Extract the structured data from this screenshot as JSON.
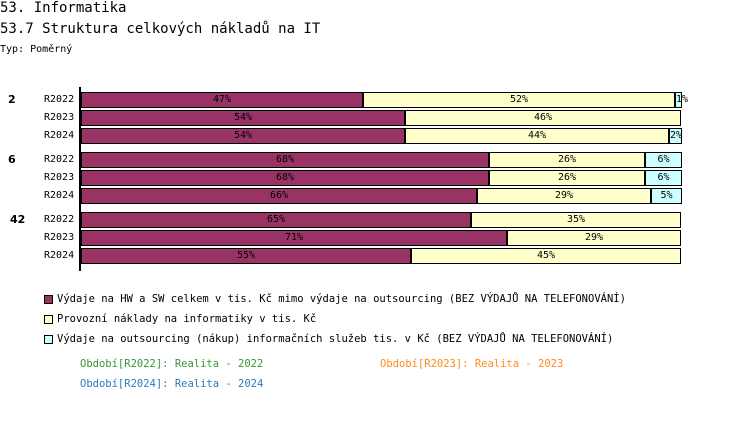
{
  "header": {
    "title": "53. Informatika",
    "subtitle": "53.7 Struktura celkových nákladů na IT",
    "type_label": "Typ: Poměrný"
  },
  "colors": {
    "hw_sw": "#993366",
    "provozni": "#FFFFCC",
    "outsourcing": "#CCFFFF"
  },
  "chart_data": {
    "type": "bar",
    "orientation": "horizontal",
    "stacked": "percent",
    "groups": [
      {
        "label": "2",
        "rows": [
          {
            "label": "R2022",
            "values": [
              47,
              52,
              1
            ]
          },
          {
            "label": "R2023",
            "values": [
              54,
              46,
              0
            ]
          },
          {
            "label": "R2024",
            "values": [
              54,
              44,
              2
            ]
          }
        ]
      },
      {
        "label": "6",
        "rows": [
          {
            "label": "R2022",
            "values": [
              68,
              26,
              6
            ]
          },
          {
            "label": "R2023",
            "values": [
              68,
              26,
              6
            ]
          },
          {
            "label": "R2024",
            "values": [
              66,
              29,
              5
            ]
          }
        ]
      },
      {
        "label": "42",
        "rows": [
          {
            "label": "R2022",
            "values": [
              65,
              35,
              0
            ]
          },
          {
            "label": "R2023",
            "values": [
              71,
              29,
              0
            ]
          },
          {
            "label": "R2024",
            "values": [
              55,
              45,
              0
            ]
          }
        ]
      }
    ],
    "series": [
      {
        "name": "Výdaje na HW a SW celkem v tis. Kč mimo výdaje na outsourcing (BEZ VÝDAJŮ NA TELEFONOVÁNÍ)",
        "color": "#993366"
      },
      {
        "name": "Provozní náklady na informatiky v tis. Kč",
        "color": "#FFFFCC"
      },
      {
        "name": "Výdaje na outsourcing (nákup) informačních služeb tis. v Kč (BEZ VÝDAJŮ NA TELEFONOVÁNÍ)",
        "color": "#CCFFFF"
      }
    ],
    "xlim": [
      0,
      100
    ],
    "legend": "bottom"
  },
  "periods": [
    {
      "text": "Období[R2022]: Realita - 2022",
      "color": "#339933"
    },
    {
      "text": "Období[R2023]: Realita - 2023",
      "color": "#FF8C1A"
    },
    {
      "text": "Období[R2024]: Realita - 2024",
      "color": "#2B7BBF"
    }
  ]
}
